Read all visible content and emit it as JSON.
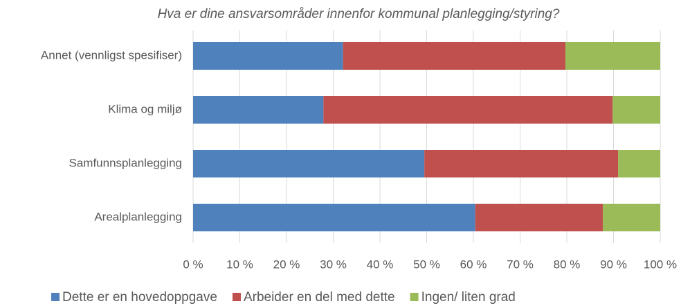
{
  "chart_data": {
    "type": "stacked-bar-horizontal",
    "title": "Hva er dine ansvarsområder innenfor kommunal planlegging/styring?",
    "categories": [
      "Annet (vennligst spesifiser)",
      "Klima og miljø",
      "Samfunnsplanlegging",
      "Arealplanlegging"
    ],
    "series": [
      {
        "name": "Dette er en hovedoppgave",
        "color": "#4f81bd",
        "values": [
          32.1,
          27.9,
          49.5,
          60.4
        ]
      },
      {
        "name": "Arbeider en del med dette",
        "color": "#c0504d",
        "values": [
          47.6,
          61.9,
          41.5,
          27.3
        ]
      },
      {
        "name": "Ingen/ liten grad",
        "color": "#9bbb59",
        "values": [
          20.3,
          10.2,
          9.0,
          12.3
        ]
      }
    ],
    "xlim": [
      0,
      100
    ],
    "xticks": [
      {
        "value": 0,
        "label": "0 %"
      },
      {
        "value": 10,
        "label": "10 %"
      },
      {
        "value": 20,
        "label": "20 %"
      },
      {
        "value": 30,
        "label": "30 %"
      },
      {
        "value": 40,
        "label": "40 %"
      },
      {
        "value": 50,
        "label": "50 %"
      },
      {
        "value": 60,
        "label": "60 %"
      },
      {
        "value": 70,
        "label": "70 %"
      },
      {
        "value": 80,
        "label": "80 %"
      },
      {
        "value": 90,
        "label": "90 %"
      },
      {
        "value": 100,
        "label": "100 %"
      }
    ],
    "grid": true,
    "legend": "bottom"
  }
}
